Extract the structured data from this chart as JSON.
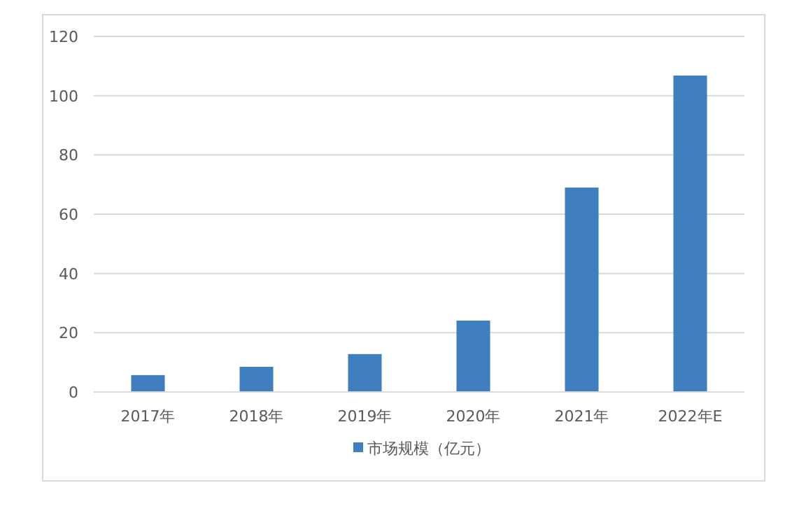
{
  "chart_data": {
    "type": "bar",
    "categories": [
      "2017年",
      "2018年",
      "2019年",
      "2020年",
      "2021年",
      "2022年E"
    ],
    "series": [
      {
        "name": "市场规模（亿元）",
        "color": "#3f7fbf",
        "values": [
          5.7,
          8.5,
          12.8,
          24.1,
          69.0,
          106.8
        ]
      }
    ],
    "ylim": [
      0,
      120
    ],
    "yticks": [
      0,
      20,
      40,
      60,
      80,
      100,
      120
    ],
    "grid": "y",
    "legend": "bottom"
  }
}
